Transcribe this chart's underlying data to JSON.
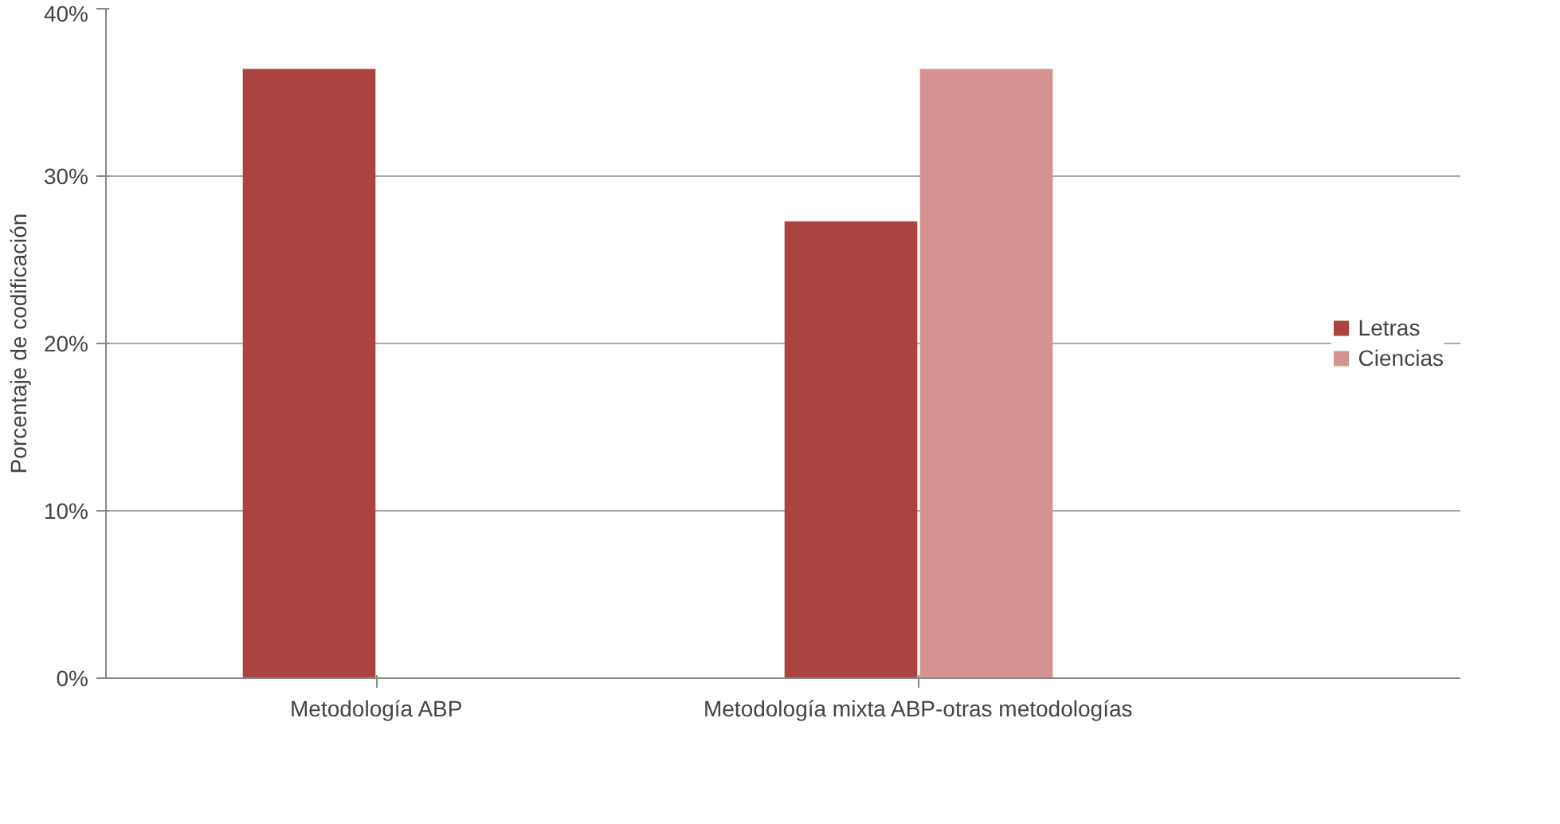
{
  "chart_data": {
    "type": "bar",
    "ylabel": "Porcentaje de codificación",
    "categories": [
      "Metodología ABP",
      "Metodología mixta ABP-otras metodologías"
    ],
    "series": [
      {
        "name": "Letras",
        "color": "#ab4441",
        "values": [
          36.4,
          27.3
        ]
      },
      {
        "name": "Ciencias",
        "color": "#d49293",
        "values": [
          0,
          36.4
        ]
      }
    ],
    "ylim": [
      0,
      40
    ],
    "yticks": [
      {
        "value": 0,
        "label": "0%"
      },
      {
        "value": 10,
        "label": "10%"
      },
      {
        "value": 20,
        "label": "20%"
      },
      {
        "value": 30,
        "label": "30%"
      },
      {
        "value": 40,
        "label": "40%"
      }
    ],
    "grid": "y",
    "legend": "right"
  }
}
